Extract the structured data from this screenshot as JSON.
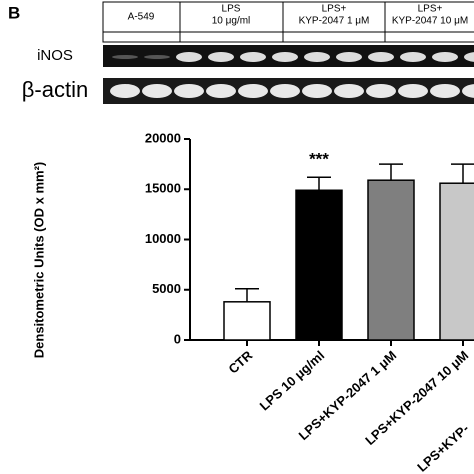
{
  "panel_label": "B",
  "blot": {
    "header": [
      [
        "A-549"
      ],
      [
        "LPS",
        "10 μg/ml"
      ],
      [
        "LPS+",
        "KYP-2047 1 μM"
      ],
      [
        "LPS+",
        "KYP-2047 10 μM"
      ]
    ],
    "rows": [
      "iNOS",
      "β-actin"
    ]
  },
  "chart_data": {
    "type": "bar",
    "ylabel": "Densitometric Units (OD x mm²)",
    "categories": [
      "CTR",
      "LPS 10 μg/ml",
      "LPS+KYP-2047 1 μM",
      "LPS+KYP-2047 10 μM",
      "LPS+KYP-"
    ],
    "values": [
      3800,
      14900,
      15900,
      15600,
      null
    ],
    "errors": [
      1300,
      1300,
      1600,
      1900,
      null
    ],
    "colors": [
      "#ffffff",
      "#000000",
      "#7f7f7f",
      "#c8c8c8",
      "#c8c8c8"
    ],
    "annotation": {
      "text": "***",
      "category": 1
    },
    "ylim": [
      0,
      20000
    ],
    "yticks": [
      0,
      5000,
      10000,
      15000,
      20000
    ]
  }
}
